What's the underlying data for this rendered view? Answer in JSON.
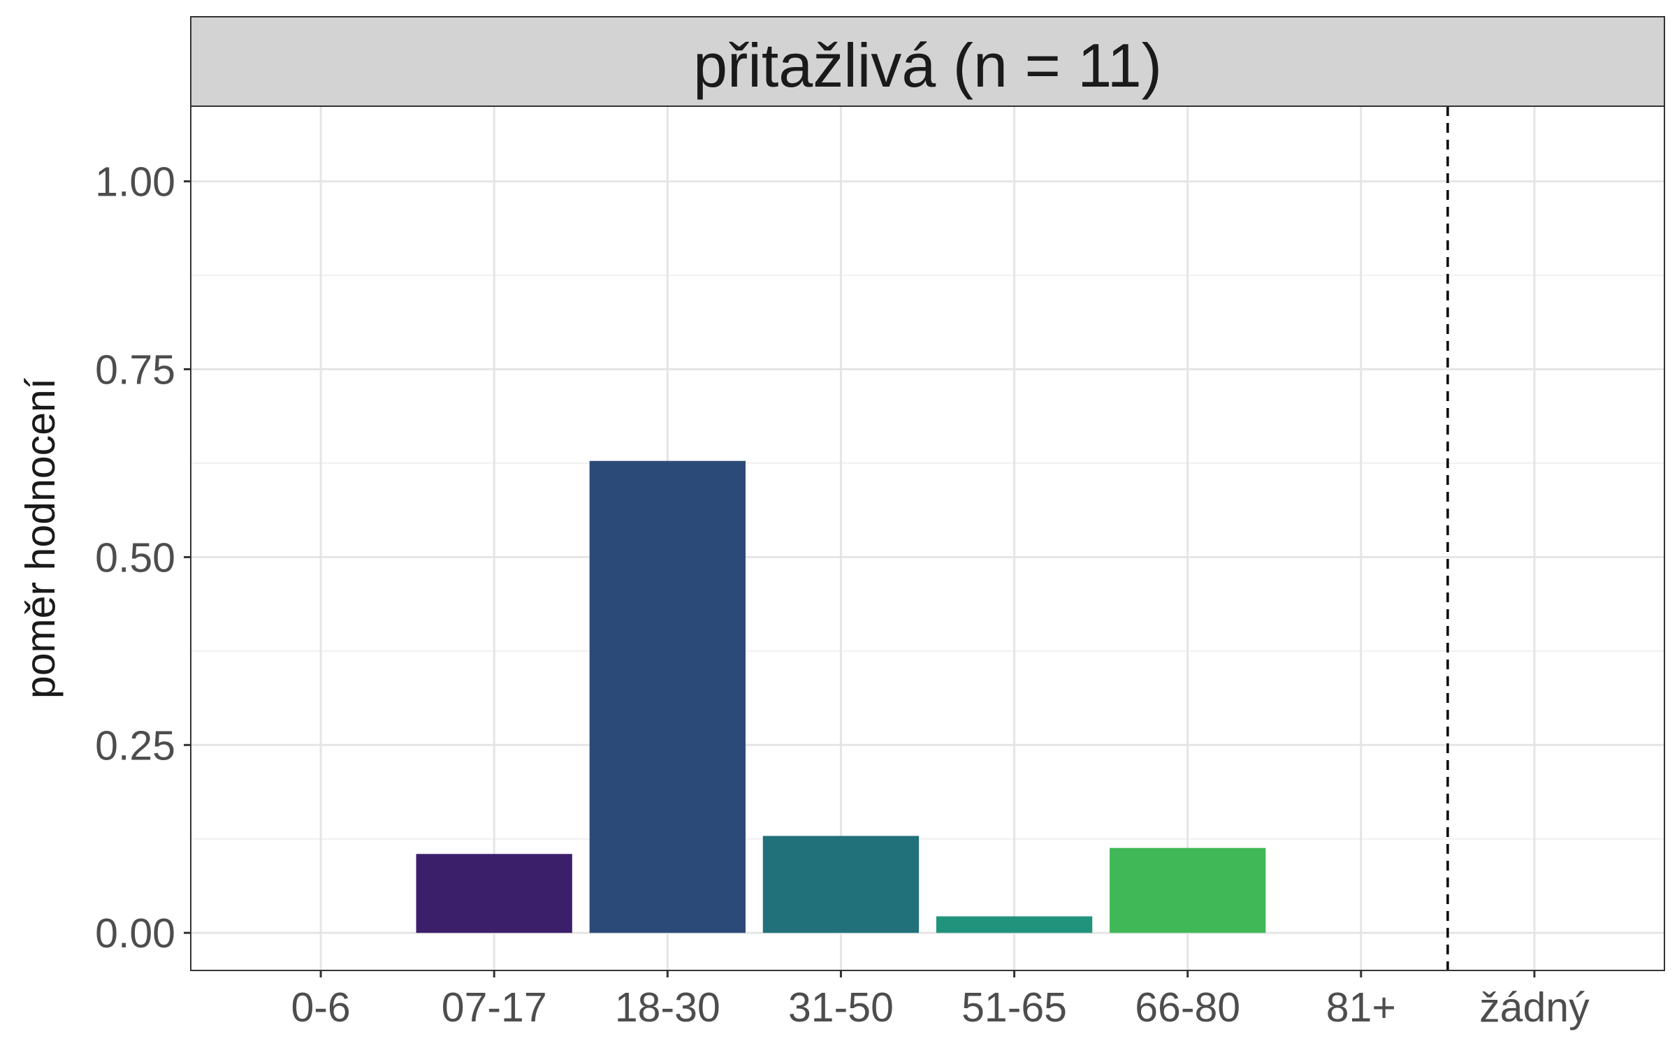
{
  "chart_data": {
    "type": "bar",
    "facet_title": "přitažlivá (n = 11)",
    "ylabel": "poměr hodnocení",
    "xlabel": "",
    "ylim": [
      -0.05,
      1.1
    ],
    "y_ticks": [
      "0.00",
      "0.25",
      "0.50",
      "0.75",
      "1.00"
    ],
    "categories": [
      "0-6",
      "07-17",
      "18-30",
      "31-50",
      "51-65",
      "66-80",
      "81+",
      "žádný"
    ],
    "values": [
      0,
      0.105,
      0.628,
      0.129,
      0.022,
      0.113,
      0,
      0
    ],
    "colors": [
      "#440154",
      "#3b1f6b",
      "#2c4a78",
      "#21717b",
      "#21937c",
      "#40b858",
      "#7ad151",
      "#fde725"
    ],
    "reference_line": {
      "after_category": "81+",
      "style": "dashed"
    },
    "grid": true
  }
}
